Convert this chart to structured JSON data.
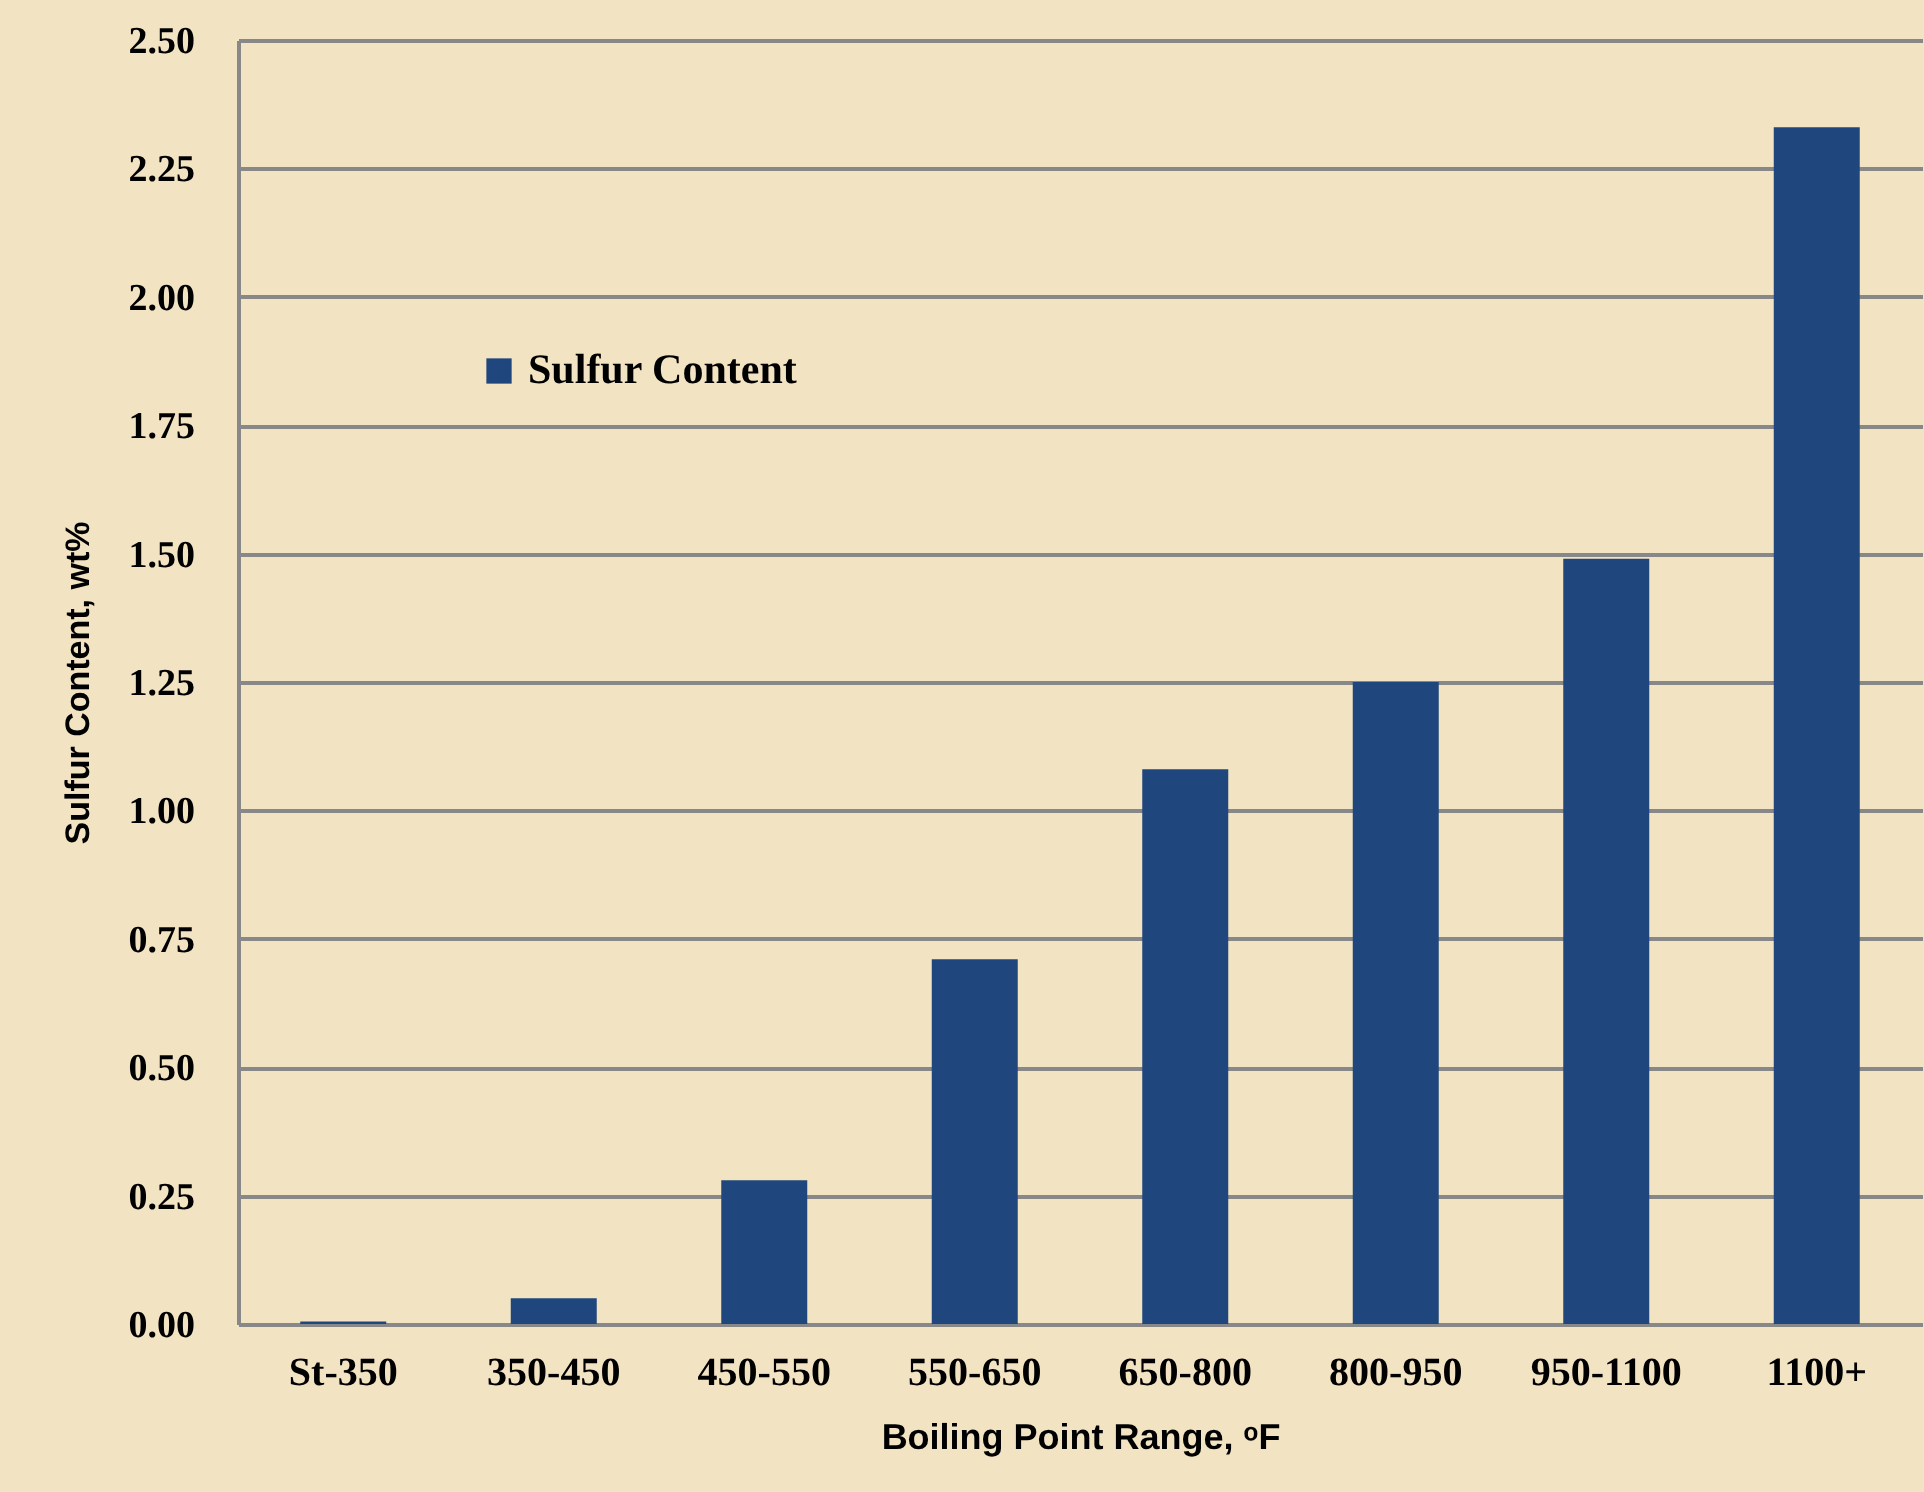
{
  "chart_data": {
    "type": "bar",
    "xlabel": "Boiling Point Range, ᵒF",
    "ylabel": "Sulfur Content, wt%",
    "categories": [
      "St-350",
      "350-450",
      "450-550",
      "550-650",
      "650-800",
      "800-950",
      "950-1100",
      "1100+"
    ],
    "series": [
      {
        "name": "Sulfur Content",
        "color": "#1f477d",
        "values": [
          0.005,
          0.05,
          0.28,
          0.71,
          1.08,
          1.25,
          1.49,
          2.33
        ]
      }
    ],
    "ylim": [
      0,
      2.5
    ],
    "yticks": [
      {
        "value": 0,
        "label": "0.00"
      },
      {
        "value": 0.25,
        "label": "0.25"
      },
      {
        "value": 0.5,
        "label": "0.50"
      },
      {
        "value": 0.75,
        "label": "0.75"
      },
      {
        "value": 1,
        "label": "1.00"
      },
      {
        "value": 1.25,
        "label": "1.25"
      },
      {
        "value": 1.5,
        "label": "1.50"
      },
      {
        "value": 1.75,
        "label": "1.75"
      },
      {
        "value": 2,
        "label": "2.00"
      },
      {
        "value": 2.25,
        "label": "2.25"
      },
      {
        "value": 2.5,
        "label": "2.50"
      }
    ],
    "grid": "y",
    "legend": "top left"
  }
}
